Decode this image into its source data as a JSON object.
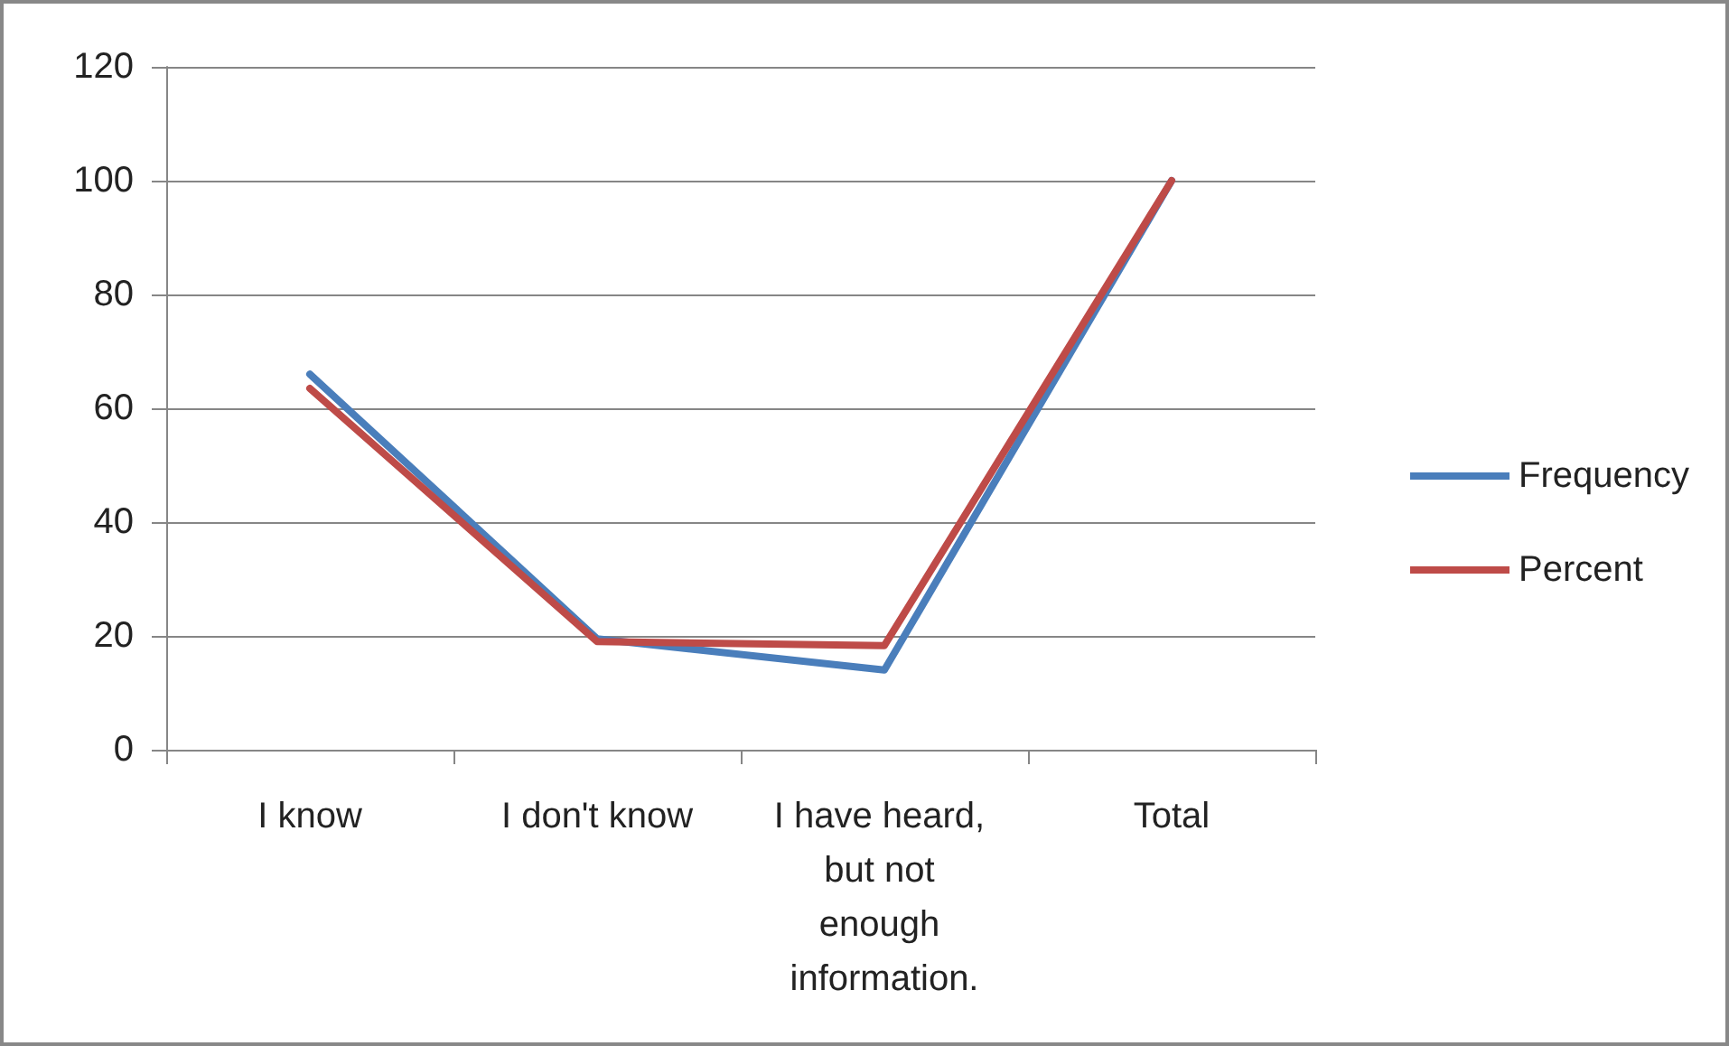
{
  "chart_data": {
    "type": "line",
    "categories": [
      "I know",
      "I don't know",
      "I have heard, but not enough information.",
      "Total"
    ],
    "series": [
      {
        "name": "Frequency",
        "color": "#4a7ebb",
        "values": [
          66,
          19.5,
          14,
          100
        ]
      },
      {
        "name": "Percent",
        "color": "#be4b48",
        "values": [
          63.5,
          19,
          18.3,
          100
        ]
      }
    ],
    "ylim": [
      0,
      120
    ],
    "yticks": [
      0,
      20,
      40,
      60,
      80,
      100,
      120
    ],
    "grid": "y",
    "legend": "right",
    "marker": "none",
    "line_style": "solid"
  }
}
